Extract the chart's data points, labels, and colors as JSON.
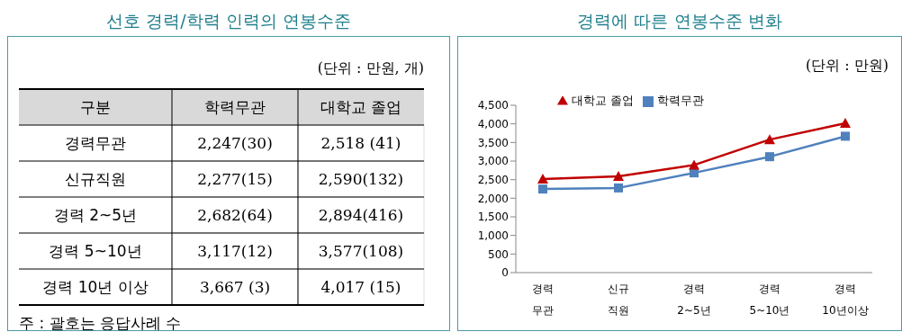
{
  "chart_data": [
    {
      "type": "other",
      "title": "선호 경력/학력 인력의 연봉수준",
      "subtitle": "(단위 : 만원, 개)",
      "ylabel": "구분",
      "categories": [
        "학력무관",
        "대학교 졸업"
      ],
      "y_categories": [
        "경력무관",
        "신규직원",
        "경력 2~5년",
        "경력 5~10년",
        "경력 10년 이상"
      ],
      "cell_labels": [
        [
          "2,247(30)",
          "2,518 (41)"
        ],
        [
          "2,277(15)",
          "2,590(132)"
        ],
        [
          "2,682(64)",
          "2,894(416)"
        ],
        [
          "3,117(12)",
          "3,577(108)"
        ],
        [
          "3,667 (3)",
          "4,017 (15)"
        ]
      ],
      "annotations": [
        "주 : 괄호는 응답사례 수"
      ]
    },
    {
      "type": "line",
      "title": "경력에 따른 연봉수준 변화",
      "subtitle": "(단위 : 만원)",
      "categories": [
        "경력\n무관",
        "신규\n직원",
        "경력\n2~5년",
        "경력\n5~10년",
        "경력\n10년이상"
      ],
      "series": [
        {
          "name": "학력무관",
          "color": "#4f81bd",
          "marker": "square",
          "values": [
            2247,
            2277,
            2682,
            3117,
            3667
          ]
        },
        {
          "name": "대학교 졸업",
          "color": "#c00000",
          "marker": "triangle",
          "values": [
            2518,
            2590,
            2894,
            3577,
            4017
          ]
        }
      ],
      "ylim": [
        0,
        4500
      ],
      "yticks": [
        {
          "value": 0,
          "label": "0"
        },
        {
          "value": 500,
          "label": "500"
        },
        {
          "value": 1000,
          "label": "1,000"
        },
        {
          "value": 1500,
          "label": "1,500"
        },
        {
          "value": 2000,
          "label": "2,000"
        },
        {
          "value": 2500,
          "label": "2,500"
        },
        {
          "value": 3000,
          "label": "3,000"
        },
        {
          "value": 3500,
          "label": "3,500"
        },
        {
          "value": 4000,
          "label": "4,000"
        },
        {
          "value": 4500,
          "label": "4,500"
        }
      ],
      "grid": false,
      "legend": "top left"
    }
  ]
}
